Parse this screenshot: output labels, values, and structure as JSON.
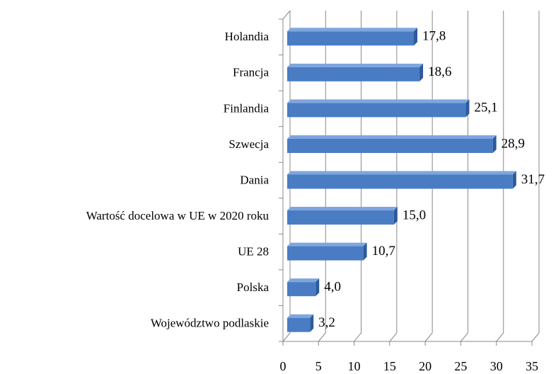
{
  "chart_data": {
    "type": "bar",
    "orientation": "horizontal",
    "categories": [
      "Holandia",
      "Francja",
      "Finlandia",
      "Szwecja",
      "Dania",
      "Wartość docelowa w UE w 2020 roku",
      "UE 28",
      "Polska",
      "Województwo podlaskie"
    ],
    "values": [
      17.8,
      18.6,
      25.1,
      28.9,
      31.7,
      15.0,
      10.7,
      4.0,
      3.2
    ],
    "value_labels": [
      "17,8",
      "18,6",
      "25,1",
      "28,9",
      "31,7",
      "15,0",
      "10,7",
      "4,0",
      "3,2"
    ],
    "color": "#4a7cc4",
    "xlim": [
      0,
      35
    ],
    "xticks": [
      0,
      5,
      10,
      15,
      20,
      25,
      30,
      35
    ],
    "grid": true
  }
}
